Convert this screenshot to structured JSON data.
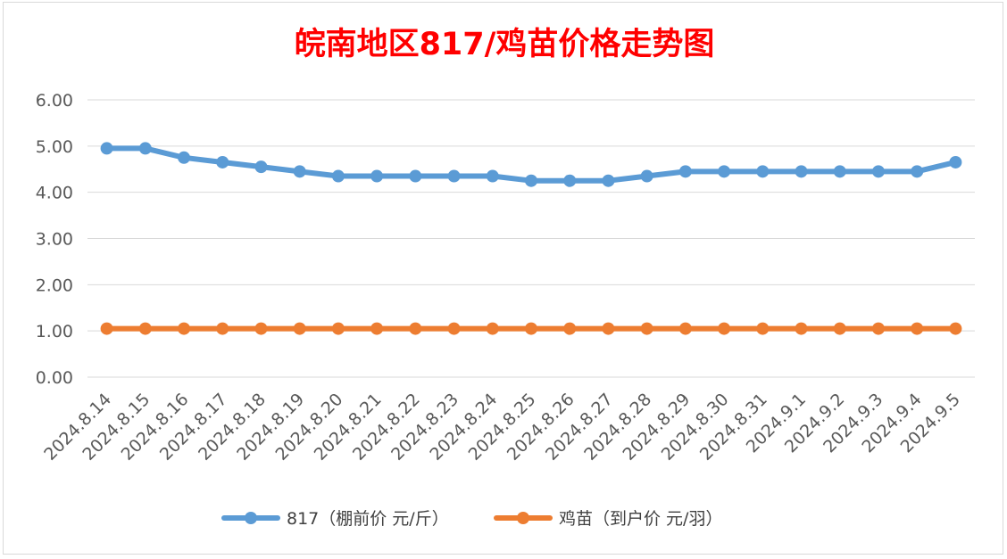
{
  "chart_data": {
    "type": "line",
    "title": "皖南地区817/鸡苗价格走势图",
    "title_color": "#ff0000",
    "categories": [
      "2024.8.14",
      "2024.8.15",
      "2024.8.16",
      "2024.8.17",
      "2024.8.18",
      "2024.8.19",
      "2024.8.20",
      "2024.8.21",
      "2024.8.22",
      "2024.8.23",
      "2024.8.24",
      "2024.8.25",
      "2024.8.26",
      "2024.8.27",
      "2024.8.28",
      "2024.8.29",
      "2024.8.30",
      "2024.8.31",
      "2024.9.1",
      "2024.9.2",
      "2024.9.3",
      "2024.9.4",
      "2024.9.5"
    ],
    "series": [
      {
        "name": "817（棚前价 元/斤）",
        "color": "#5b9bd5",
        "values": [
          4.95,
          4.95,
          4.75,
          4.65,
          4.55,
          4.45,
          4.35,
          4.35,
          4.35,
          4.35,
          4.35,
          4.25,
          4.25,
          4.25,
          4.35,
          4.45,
          4.45,
          4.45,
          4.45,
          4.45,
          4.45,
          4.45,
          4.65
        ]
      },
      {
        "name": "鸡苗（到户价 元/羽）",
        "color": "#ed7d31",
        "values": [
          1.05,
          1.05,
          1.05,
          1.05,
          1.05,
          1.05,
          1.05,
          1.05,
          1.05,
          1.05,
          1.05,
          1.05,
          1.05,
          1.05,
          1.05,
          1.05,
          1.05,
          1.05,
          1.05,
          1.05,
          1.05,
          1.05,
          1.05
        ]
      }
    ],
    "yticks": [
      "0.00",
      "1.00",
      "2.00",
      "3.00",
      "4.00",
      "5.00",
      "6.00"
    ],
    "ylim": [
      0,
      6
    ],
    "xlabel": "",
    "ylabel": "",
    "grid": true,
    "legend_position": "bottom",
    "gridline_color": "#d9d9d9"
  }
}
